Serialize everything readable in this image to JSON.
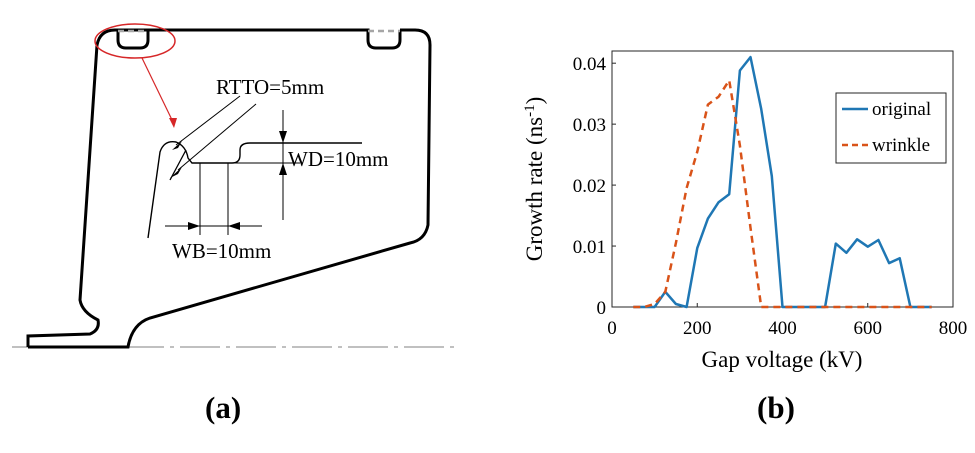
{
  "panel_a": {
    "caption": "(a)",
    "labels": {
      "rtto": "RTTO=5mm",
      "wd": "WD=10mm",
      "wb": "WB=10mm"
    },
    "colors": {
      "highlight": "#d62728",
      "outline": "#000000",
      "dashed": "#a6a6a6"
    }
  },
  "panel_b": {
    "caption": "(b)",
    "chart_data": {
      "type": "line",
      "xlabel": "Gap voltage (kV)",
      "ylabel": "Growth rate (ns",
      "ylabel_sup": "-1",
      "ylabel_close": ")",
      "xlim": [
        0,
        800
      ],
      "ylim": [
        0,
        0.042
      ],
      "xticks": [
        0,
        200,
        400,
        600,
        800
      ],
      "yticks": [
        0,
        0.01,
        0.02,
        0.03,
        0.04
      ],
      "xtick_labels": [
        "0",
        "200",
        "400",
        "600",
        "800"
      ],
      "ytick_labels": [
        "0",
        "0.01",
        "0.02",
        "0.03",
        "0.04"
      ],
      "legend_position": "top-right",
      "series": [
        {
          "name": "original",
          "color": "#1f77b4",
          "style": "solid",
          "x": [
            50,
            100,
            125,
            150,
            175,
            200,
            225,
            250,
            275,
            300,
            325,
            350,
            375,
            400,
            425,
            450,
            475,
            500,
            525,
            550,
            575,
            600,
            625,
            650,
            675,
            700,
            725,
            750
          ],
          "y": [
            0,
            0,
            0.0025,
            0.0005,
            0,
            0.0097,
            0.0145,
            0.0172,
            0.0185,
            0.0388,
            0.041,
            0.0325,
            0.0215,
            0,
            0,
            0,
            0,
            0,
            0.0104,
            0.0089,
            0.0111,
            0.0099,
            0.011,
            0.0072,
            0.008,
            0,
            0,
            0
          ]
        },
        {
          "name": "wrinkle",
          "color": "#d95319",
          "style": "dashed",
          "x": [
            50,
            75,
            100,
            125,
            150,
            175,
            200,
            225,
            250,
            275,
            300,
            325,
            350,
            375,
            400,
            450,
            500,
            550,
            600,
            650,
            700,
            750
          ],
          "y": [
            0,
            0,
            0.0005,
            0.0025,
            0.0105,
            0.0195,
            0.0255,
            0.0332,
            0.0345,
            0.0372,
            0.0265,
            0.013,
            0,
            0,
            0,
            0,
            0,
            0,
            0,
            0,
            0,
            0
          ]
        }
      ]
    }
  }
}
